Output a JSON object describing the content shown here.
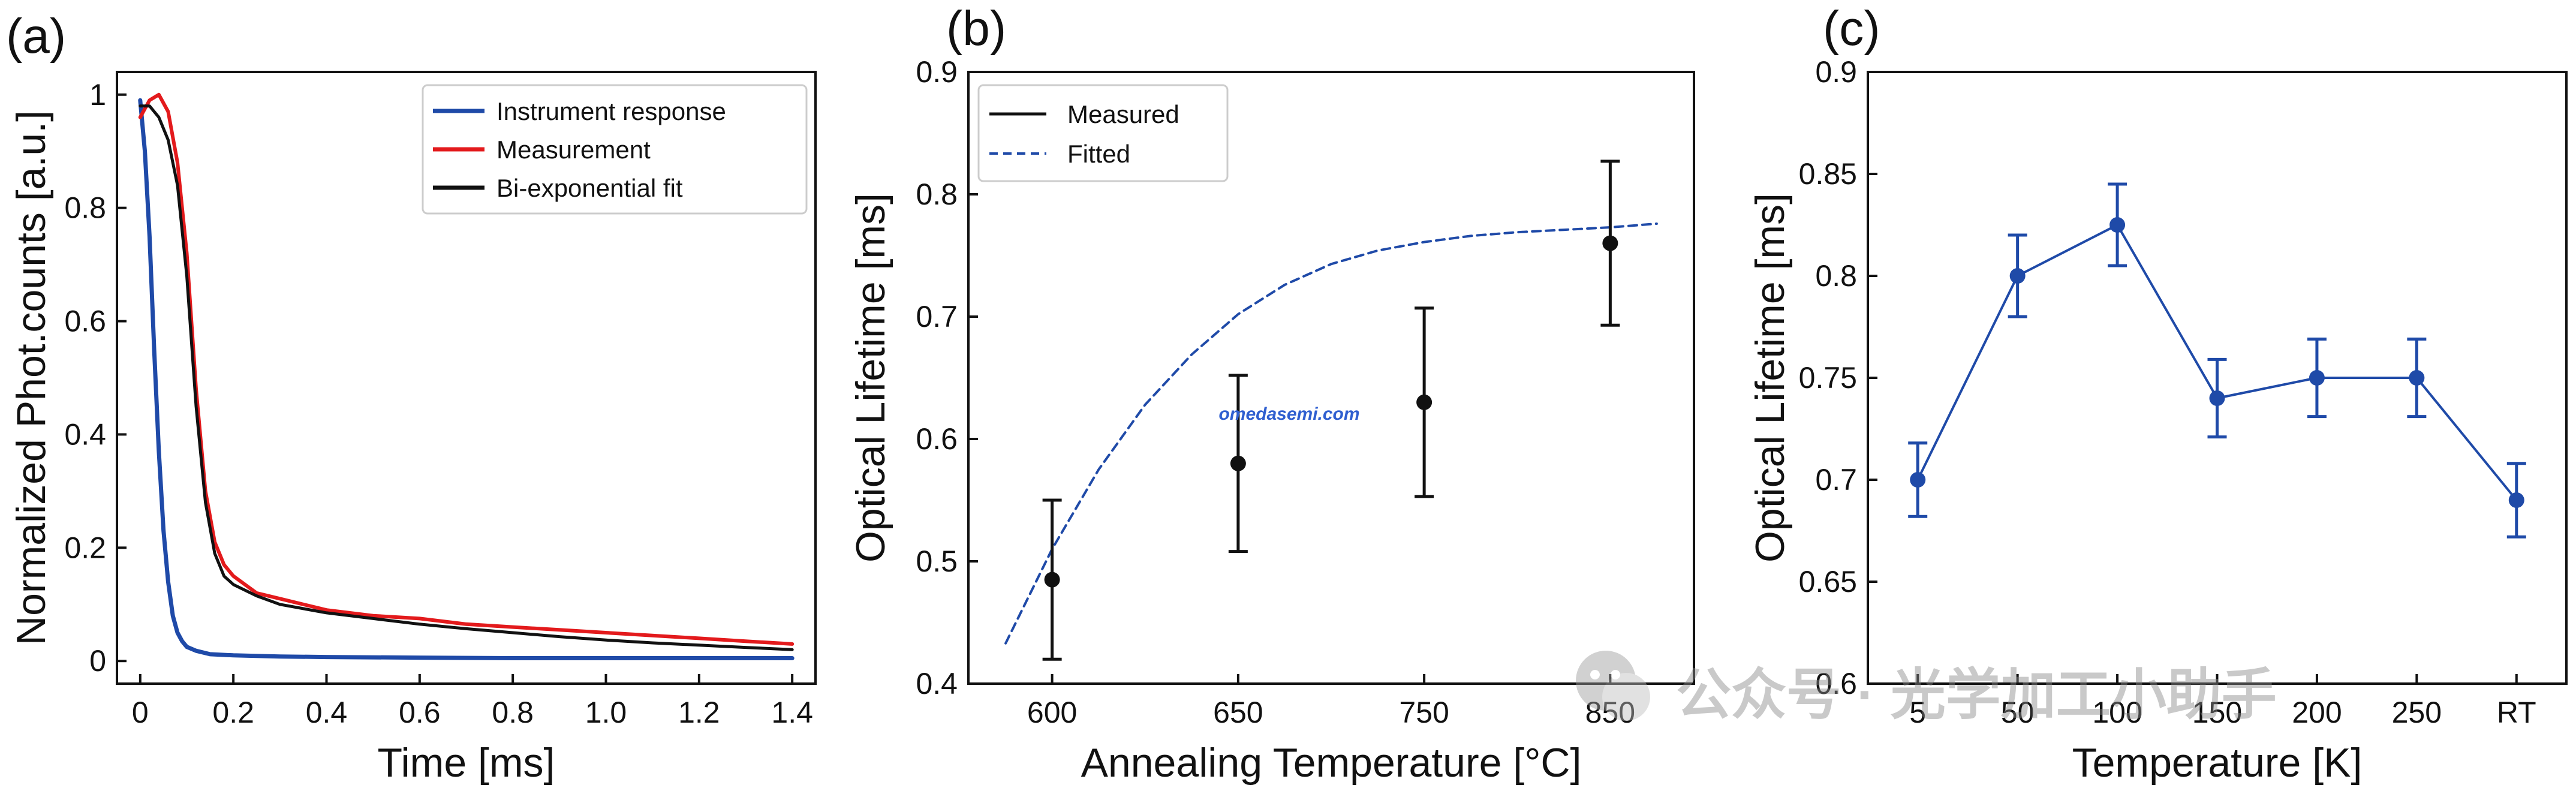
{
  "chart_data": [
    {
      "panel": "(a)",
      "type": "line",
      "xlabel": "Time [ms]",
      "ylabel": "Normalized Phot.counts [a.u.]",
      "xlim": [
        -0.05,
        1.45
      ],
      "ylim": [
        -0.04,
        1.04
      ],
      "xticks": [
        0,
        0.2,
        0.4,
        0.6,
        0.8,
        1.0,
        1.2,
        1.4
      ],
      "xtick_labels": [
        "0",
        "0.2",
        "0.4",
        "0.6",
        "0.8",
        "1.0",
        "1.2",
        "1.4"
      ],
      "yticks": [
        0,
        0.2,
        0.4,
        0.6,
        0.8,
        1
      ],
      "ytick_labels": [
        "0",
        "0.2",
        "0.4",
        "0.6",
        "0.8",
        "1"
      ],
      "legend_position": "top-right",
      "series": [
        {
          "name": "Instrument response",
          "color": "#1f4aa8",
          "x": [
            0,
            0.01,
            0.02,
            0.03,
            0.04,
            0.05,
            0.06,
            0.07,
            0.08,
            0.09,
            0.1,
            0.12,
            0.15,
            0.2,
            0.3,
            0.4,
            0.6,
            0.8,
            1.0,
            1.2,
            1.4
          ],
          "y": [
            0.99,
            0.9,
            0.75,
            0.55,
            0.37,
            0.23,
            0.14,
            0.08,
            0.05,
            0.035,
            0.025,
            0.018,
            0.012,
            0.01,
            0.008,
            0.007,
            0.006,
            0.005,
            0.005,
            0.005,
            0.005
          ]
        },
        {
          "name": "Measurement",
          "color": "#e31a1c",
          "x": [
            0,
            0.02,
            0.04,
            0.06,
            0.08,
            0.1,
            0.12,
            0.14,
            0.16,
            0.18,
            0.2,
            0.25,
            0.3,
            0.4,
            0.5,
            0.6,
            0.7,
            0.8,
            0.9,
            1.0,
            1.1,
            1.2,
            1.3,
            1.4
          ],
          "y": [
            0.96,
            0.99,
            1.0,
            0.97,
            0.88,
            0.72,
            0.48,
            0.3,
            0.21,
            0.17,
            0.15,
            0.12,
            0.11,
            0.09,
            0.08,
            0.075,
            0.065,
            0.06,
            0.055,
            0.05,
            0.045,
            0.04,
            0.035,
            0.03
          ]
        },
        {
          "name": "Bi-exponential fit",
          "color": "#111111",
          "x": [
            0,
            0.02,
            0.04,
            0.06,
            0.08,
            0.1,
            0.12,
            0.14,
            0.16,
            0.18,
            0.2,
            0.25,
            0.3,
            0.4,
            0.5,
            0.6,
            0.7,
            0.8,
            0.9,
            1.0,
            1.1,
            1.2,
            1.3,
            1.4
          ],
          "y": [
            0.98,
            0.98,
            0.96,
            0.92,
            0.84,
            0.68,
            0.45,
            0.28,
            0.19,
            0.15,
            0.135,
            0.115,
            0.1,
            0.085,
            0.075,
            0.065,
            0.057,
            0.05,
            0.043,
            0.037,
            0.032,
            0.028,
            0.024,
            0.02
          ]
        }
      ]
    },
    {
      "panel": "(b)",
      "type": "scatter",
      "xlabel": "Annealing Temperature [°C]",
      "ylabel": "Optical Lifetime [ms]",
      "categories": [
        "600",
        "650",
        "750",
        "850"
      ],
      "xlim": [
        -0.45,
        3.45
      ],
      "ylim": [
        0.4,
        0.9
      ],
      "yticks": [
        0.4,
        0.5,
        0.6,
        0.7,
        0.8,
        0.9
      ],
      "ytick_labels": [
        "0.4",
        "0.5",
        "0.6",
        "0.7",
        "0.8",
        "0.9"
      ],
      "legend_position": "top-left",
      "series": [
        {
          "name": "Measured",
          "color": "#111111",
          "values": [
            0.485,
            0.58,
            0.63,
            0.76
          ],
          "errors": [
            0.065,
            0.072,
            0.077,
            0.067
          ]
        },
        {
          "name": "Fitted",
          "color": "#1f4aa8",
          "style": "dashed",
          "x": [
            -0.25,
            0,
            0.25,
            0.5,
            0.75,
            1.0,
            1.25,
            1.5,
            1.75,
            2.0,
            2.25,
            2.5,
            2.75,
            3.0,
            3.25
          ],
          "y": [
            0.433,
            0.51,
            0.575,
            0.628,
            0.669,
            0.702,
            0.726,
            0.743,
            0.754,
            0.761,
            0.766,
            0.769,
            0.771,
            0.773,
            0.776
          ]
        }
      ]
    },
    {
      "panel": "(c)",
      "type": "line",
      "xlabel": "Temperature [K]",
      "ylabel": "Optical Lifetime [ms]",
      "categories": [
        "5",
        "50",
        "100",
        "150",
        "200",
        "250",
        "RT"
      ],
      "xlim": [
        -0.5,
        6.5
      ],
      "ylim": [
        0.6,
        0.9
      ],
      "yticks": [
        0.6,
        0.65,
        0.7,
        0.75,
        0.8,
        0.85,
        0.9
      ],
      "ytick_labels": [
        "0.6",
        "0.65",
        "0.7",
        "0.75",
        "0.8",
        "0.85",
        "0.9"
      ],
      "series": [
        {
          "name": "Optical lifetime",
          "color": "#1f4aa8",
          "values": [
            0.7,
            0.8,
            0.825,
            0.74,
            0.75,
            0.75,
            0.69
          ],
          "errors": [
            0.018,
            0.02,
            0.02,
            0.019,
            0.019,
            0.019,
            0.018
          ]
        }
      ]
    }
  ],
  "watermarks": {
    "site": "omedasemi.com",
    "wechat": "公众号 · 光学加工小助手"
  }
}
